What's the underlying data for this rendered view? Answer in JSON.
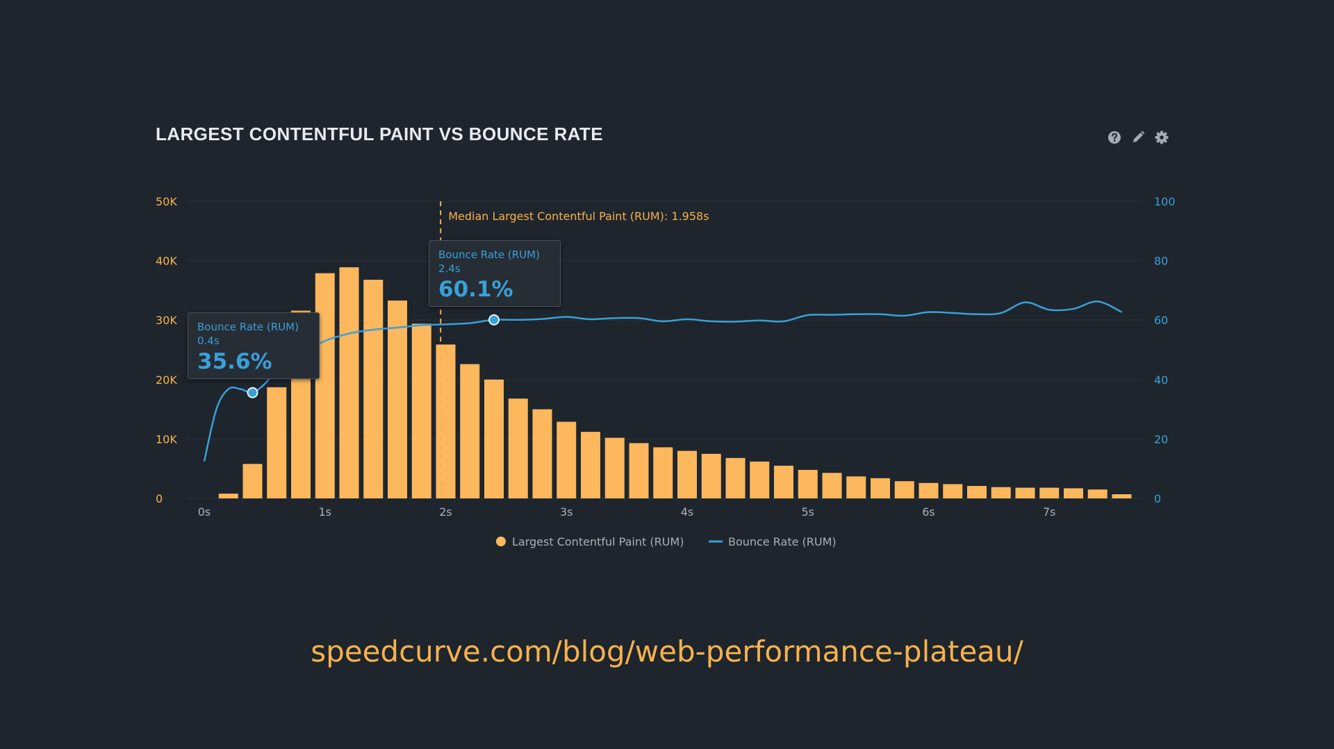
{
  "title": "LARGEST CONTENTFUL PAINT VS BOUNCE RATE",
  "footer_url": "speedcurve.com/blog/web-performance-plateau/",
  "toolbar": [
    {
      "icon": "help-icon"
    },
    {
      "icon": "pencil-icon"
    },
    {
      "icon": "gear-icon"
    }
  ],
  "colors": {
    "background": "#1e252d",
    "bars": "#fdb75d",
    "line": "#3aa0d8",
    "median": "#f7b24c",
    "grid": "#2a323b",
    "left_axis_text": "#f7b24c",
    "right_axis_text": "#3aa0d8",
    "x_axis_text": "#a8b0b8"
  },
  "chart_data": {
    "type": "bar",
    "x_ticks": [
      {
        "value": 0,
        "label": "0s"
      },
      {
        "value": 1,
        "label": "1s"
      },
      {
        "value": 2,
        "label": "2s"
      },
      {
        "value": 3,
        "label": "3s"
      },
      {
        "value": 4,
        "label": "4s"
      },
      {
        "value": 5,
        "label": "5s"
      },
      {
        "value": 6,
        "label": "6s"
      },
      {
        "value": 7,
        "label": "7s"
      }
    ],
    "xlim": [
      0,
      7.8
    ],
    "y_left": {
      "range": [
        0,
        50000
      ],
      "ticks": [
        {
          "value": 0,
          "label": "0"
        },
        {
          "value": 10000,
          "label": "10K"
        },
        {
          "value": 20000,
          "label": "20K"
        },
        {
          "value": 30000,
          "label": "30K"
        },
        {
          "value": 40000,
          "label": "40K"
        },
        {
          "value": 50000,
          "label": "50K"
        }
      ]
    },
    "y_right": {
      "range": [
        0,
        100
      ],
      "ticks": [
        {
          "value": 0,
          "label": "0"
        },
        {
          "value": 20,
          "label": "20"
        },
        {
          "value": 40,
          "label": "40"
        },
        {
          "value": 60,
          "label": "60"
        },
        {
          "value": 80,
          "label": "80"
        },
        {
          "value": 100,
          "label": "100"
        }
      ]
    },
    "grid": true,
    "legend_position": "bottom",
    "series": [
      {
        "name": "Largest Contentful Paint (RUM)",
        "type": "bar",
        "axis": "left",
        "x": [
          0.2,
          0.4,
          0.6,
          0.8,
          1.0,
          1.2,
          1.4,
          1.6,
          1.8,
          2.0,
          2.2,
          2.4,
          2.6,
          2.8,
          3.0,
          3.2,
          3.4,
          3.6,
          3.8,
          4.0,
          4.2,
          4.4,
          4.6,
          4.8,
          5.0,
          5.2,
          5.4,
          5.6,
          5.8,
          6.0,
          6.2,
          6.4,
          6.6,
          6.8,
          7.0,
          7.2,
          7.4,
          7.6
        ],
        "values": [
          800,
          5800,
          18700,
          31600,
          37900,
          38900,
          36800,
          33300,
          29400,
          25900,
          22600,
          20000,
          16800,
          15000,
          12900,
          11200,
          10200,
          9300,
          8600,
          8000,
          7500,
          6800,
          6200,
          5500,
          4800,
          4300,
          3700,
          3400,
          2900,
          2600,
          2400,
          2100,
          1900,
          1800,
          1800,
          1700,
          1500,
          700
        ]
      },
      {
        "name": "Bounce Rate (RUM)",
        "type": "line",
        "axis": "right",
        "x": [
          0.0,
          0.1,
          0.2,
          0.3,
          0.4,
          0.5,
          0.6,
          0.8,
          1.0,
          1.2,
          1.4,
          1.6,
          1.8,
          2.0,
          2.2,
          2.4,
          2.6,
          2.8,
          3.0,
          3.2,
          3.4,
          3.6,
          3.8,
          4.0,
          4.2,
          4.4,
          4.6,
          4.8,
          5.0,
          5.2,
          5.4,
          5.6,
          5.8,
          6.0,
          6.2,
          6.4,
          6.6,
          6.8,
          7.0,
          7.2,
          7.4,
          7.6
        ],
        "values": [
          12.5,
          30,
          36.8,
          36.8,
          35.6,
          38.5,
          43,
          48.5,
          53,
          55.5,
          56.8,
          57.5,
          58.3,
          58.6,
          59,
          60.1,
          60.1,
          60.4,
          61.1,
          60.3,
          60.7,
          60.7,
          59.6,
          60.3,
          59.6,
          59.5,
          59.9,
          59.6,
          61.7,
          61.8,
          62.0,
          62.0,
          61.5,
          62.7,
          62.4,
          62.0,
          62.4,
          66.0,
          63.5,
          63.8,
          66.3,
          62.7
        ]
      }
    ],
    "median_line": {
      "x": 1.958,
      "label": "Median Largest Contentful Paint (RUM): 1.958s"
    },
    "tooltips": [
      {
        "series": "Bounce Rate (RUM)",
        "x_label": "0.4s",
        "x": 0.4,
        "y": 35.6,
        "value_label": "35.6%"
      },
      {
        "series": "Bounce Rate (RUM)",
        "x_label": "2.4s",
        "x": 2.4,
        "y": 60.1,
        "value_label": "60.1%"
      }
    ],
    "legend": [
      {
        "name": "Largest Contentful Paint (RUM)",
        "symbol": "circle"
      },
      {
        "name": "Bounce Rate (RUM)",
        "symbol": "line"
      }
    ]
  }
}
